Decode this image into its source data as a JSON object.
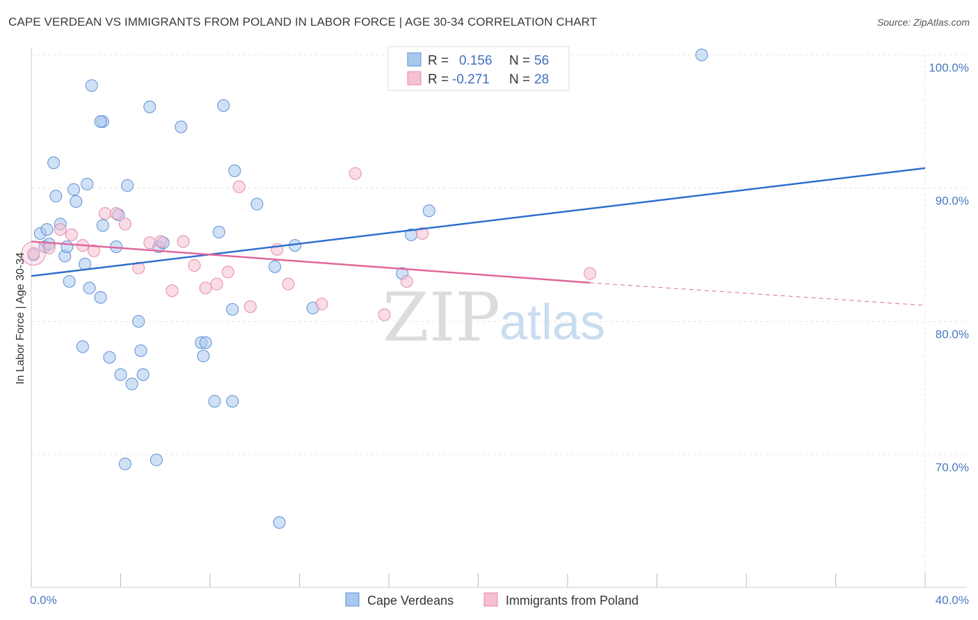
{
  "title": "CAPE VERDEAN VS IMMIGRANTS FROM POLAND IN LABOR FORCE | AGE 30-34 CORRELATION CHART",
  "source": "Source: ZipAtlas.com",
  "watermark": {
    "zip": "ZIP",
    "atlas": "atlas"
  },
  "colors": {
    "blue_fill": "#a9c8ee",
    "blue_stroke": "#5b8fd4",
    "blue_line": "#2f6fcc",
    "pink_fill": "#f6bfd2",
    "pink_stroke": "#e58aab",
    "pink_line": "#e0679a",
    "grid": "#e4e4e4",
    "tick_text": "#4a78c2"
  },
  "legend": {
    "rows": [
      {
        "r_label": "R =",
        "r_value": "0.156",
        "n_label": "N =",
        "n_value": "56"
      },
      {
        "r_label": "R =",
        "r_value": "-0.271",
        "n_label": "N =",
        "n_value": "28"
      }
    ]
  },
  "bottom_legend": [
    "Cape Verdeans",
    "Immigrants from Poland"
  ],
  "chart_data": {
    "type": "scatter",
    "title": "CAPE VERDEAN VS IMMIGRANTS FROM POLAND IN LABOR FORCE | AGE 30-34 CORRELATION CHART",
    "xlabel": "",
    "ylabel": "In Labor Force | Age 30-34",
    "xlim": [
      0,
      40
    ],
    "ylim": [
      59.5,
      101.5
    ],
    "x_tick_labels": [
      {
        "value": 0,
        "label": "0.0%"
      },
      {
        "value": 40,
        "label": "40.0%"
      }
    ],
    "y_tick_labels": [
      {
        "value": 100,
        "label": "100.0%"
      },
      {
        "value": 90,
        "label": "90.0%"
      },
      {
        "value": 80,
        "label": "80.0%"
      },
      {
        "value": 70,
        "label": "70.0%"
      }
    ],
    "x_minor_ticks": [
      0,
      4,
      8,
      12,
      16,
      20,
      24,
      28,
      32,
      36,
      40
    ],
    "grid": true,
    "legend_placement": "top-center",
    "series": [
      {
        "name": "Cape Verdeans",
        "color": "#a9c8ee",
        "points": [
          [
            0.1,
            85.0
          ],
          [
            0.4,
            86.6
          ],
          [
            0.6,
            85.6
          ],
          [
            0.7,
            86.9
          ],
          [
            0.8,
            85.8
          ],
          [
            1.0,
            91.9
          ],
          [
            1.1,
            89.4
          ],
          [
            1.3,
            87.3
          ],
          [
            1.5,
            84.9
          ],
          [
            1.6,
            85.6
          ],
          [
            1.7,
            83.0
          ],
          [
            1.9,
            89.9
          ],
          [
            2.0,
            89.0
          ],
          [
            2.3,
            78.1
          ],
          [
            2.4,
            84.3
          ],
          [
            2.5,
            90.3
          ],
          [
            2.6,
            82.5
          ],
          [
            2.7,
            97.7
          ],
          [
            3.1,
            81.8
          ],
          [
            3.2,
            95.0
          ],
          [
            3.2,
            87.2
          ],
          [
            3.5,
            77.3
          ],
          [
            3.8,
            85.6
          ],
          [
            3.9,
            88.0
          ],
          [
            4.0,
            76.0
          ],
          [
            4.3,
            90.2
          ],
          [
            4.5,
            75.3
          ],
          [
            4.8,
            80.0
          ],
          [
            4.9,
            77.8
          ],
          [
            5.0,
            76.0
          ],
          [
            5.3,
            96.1
          ],
          [
            5.6,
            69.6
          ],
          [
            5.7,
            85.6
          ],
          [
            5.9,
            85.9
          ],
          [
            6.7,
            94.6
          ],
          [
            7.6,
            78.4
          ],
          [
            7.7,
            77.4
          ],
          [
            7.8,
            78.4
          ],
          [
            8.2,
            74.0
          ],
          [
            8.4,
            86.7
          ],
          [
            8.6,
            96.2
          ],
          [
            9.0,
            74.0
          ],
          [
            9.1,
            91.3
          ],
          [
            9.0,
            80.9
          ],
          [
            10.1,
            88.8
          ],
          [
            10.9,
            84.1
          ],
          [
            11.1,
            64.9
          ],
          [
            11.8,
            85.7
          ],
          [
            12.6,
            81.0
          ],
          [
            16.6,
            83.6
          ],
          [
            17.0,
            86.5
          ],
          [
            17.8,
            88.3
          ],
          [
            4.2,
            69.3
          ],
          [
            3.1,
            95.0
          ],
          [
            30.0,
            100.0
          ],
          [
            20.9,
            100.0
          ]
        ]
      },
      {
        "name": "Immigrants from Poland",
        "color": "#f6bfd2",
        "points": [
          [
            0.1,
            85.1
          ],
          [
            0.8,
            85.5
          ],
          [
            1.3,
            86.9
          ],
          [
            1.8,
            86.5
          ],
          [
            2.3,
            85.7
          ],
          [
            2.8,
            85.3
          ],
          [
            3.3,
            88.1
          ],
          [
            3.8,
            88.1
          ],
          [
            4.2,
            87.3
          ],
          [
            4.8,
            84.0
          ],
          [
            5.3,
            85.9
          ],
          [
            5.8,
            86.0
          ],
          [
            6.3,
            82.3
          ],
          [
            6.8,
            86.0
          ],
          [
            7.3,
            84.2
          ],
          [
            7.8,
            82.5
          ],
          [
            8.3,
            82.8
          ],
          [
            8.8,
            83.7
          ],
          [
            9.3,
            90.1
          ],
          [
            9.8,
            81.1
          ],
          [
            11.0,
            85.4
          ],
          [
            11.5,
            82.8
          ],
          [
            13.0,
            81.3
          ],
          [
            14.5,
            91.1
          ],
          [
            15.8,
            80.5
          ],
          [
            16.8,
            83.0
          ],
          [
            17.5,
            86.6
          ],
          [
            25.0,
            83.6
          ]
        ]
      }
    ],
    "trendlines": [
      {
        "series": "Cape Verdeans",
        "x": [
          0,
          40
        ],
        "y": [
          83.4,
          91.5
        ],
        "style": "solid"
      },
      {
        "series": "Immigrants from Poland",
        "x": [
          0,
          25
        ],
        "y": [
          86.0,
          82.9
        ],
        "style": "solid"
      },
      {
        "series": "Immigrants from Poland",
        "x": [
          25,
          40
        ],
        "y": [
          82.9,
          81.2
        ],
        "style": "dashed"
      }
    ]
  }
}
